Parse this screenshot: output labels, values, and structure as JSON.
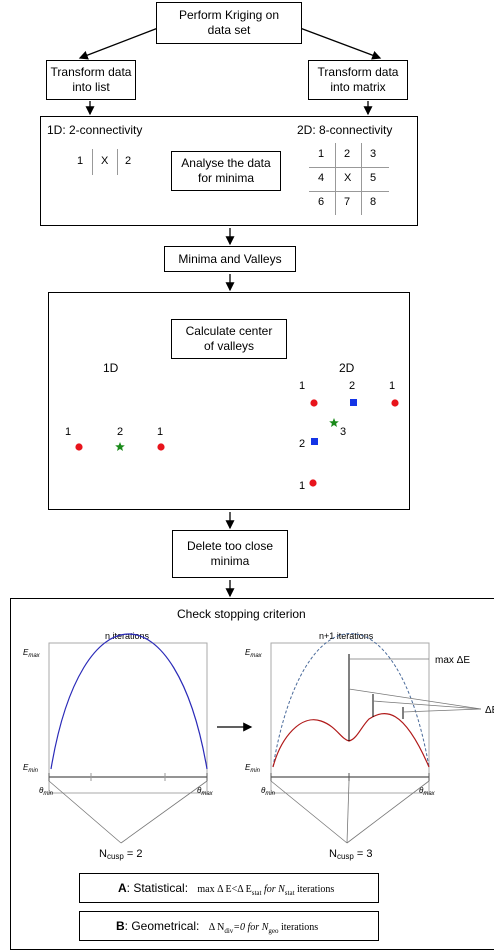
{
  "kriging": {
    "line1": "Perform Kriging on",
    "line2": "data set"
  },
  "list": {
    "line1": "Transform data",
    "line2": "into list"
  },
  "matrix": {
    "line1": "Transform data",
    "line2": "into matrix"
  },
  "analysis": {
    "conn1d": "1D: 2-connectivity",
    "conn2d": "2D: 8-connectivity",
    "center_line1": "Analyse the data",
    "center_line2": "for minima",
    "list_cells": [
      "1",
      "X",
      "2"
    ],
    "grid_cells": [
      [
        "1",
        "2",
        "3"
      ],
      [
        "4",
        "X",
        "5"
      ],
      [
        "6",
        "7",
        "8"
      ]
    ]
  },
  "minima": {
    "label": "Minima and Valleys"
  },
  "valleys": {
    "center_line1": "Calculate center",
    "center_line2": "of valleys",
    "label_1d": "1D",
    "label_2d": "2D",
    "pts_1d": [
      "1",
      "2",
      "1"
    ],
    "pts_2d": [
      "1",
      "2",
      "1",
      "2",
      "3",
      "1"
    ]
  },
  "delete": {
    "line1": "Delete too close",
    "line2": "minima"
  },
  "stopping": {
    "title": "Check stopping criterion",
    "left_plot": {
      "title": "n iterations",
      "emax": "E",
      "emax_sub": "max",
      "emin": "E",
      "emin_sub": "min",
      "thmin": "θ",
      "thmin_sub": "min",
      "thmax": "θ",
      "thmax_sub": "max"
    },
    "right_plot": {
      "title": "n+1 iterations",
      "emax": "E",
      "emax_sub": "max",
      "emin": "E",
      "emin_sub": "min",
      "thmin": "θ",
      "thmin_sub": "min",
      "thmax": "θ",
      "thmax_sub": "max"
    },
    "max_delta": "max ΔE",
    "delta": "ΔE",
    "ncusp_left": {
      "n": "N",
      "sub": "cusp",
      "val": " = 2"
    },
    "ncusp_right": {
      "n": "N",
      "sub": "cusp",
      "val": " = 3"
    },
    "crit_a": {
      "letter": "A",
      "label": ": Statistical:",
      "formula": "max Δ E<Δ E",
      "f_sub": "stat",
      "f_for": " for N",
      "f_sub2": "stat",
      "f_tail": " iterations"
    },
    "crit_b": {
      "letter": "B",
      "label": ": Geometrical:",
      "formula": "Δ N",
      "f_sub": "div",
      "f_mid": "=0 for N",
      "f_sub2": "geo",
      "f_tail": " iterations"
    }
  },
  "colors": {
    "red": "#e8141c",
    "blue": "#1434e6",
    "green": "#1a8a1a",
    "curve_blue": "#2a2ab8",
    "curve_red": "#b01818",
    "dash": "#4a6a9a"
  }
}
